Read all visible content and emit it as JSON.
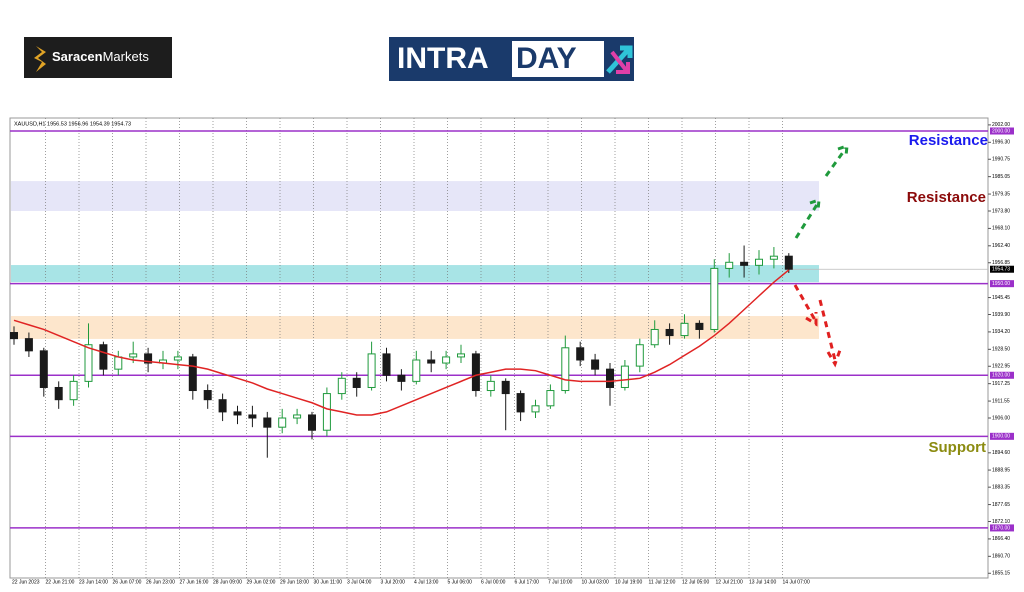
{
  "header": {
    "brand_bold": "Saracen",
    "brand_rest": "Markets",
    "logo_a": "INTRA",
    "logo_b": "DAY"
  },
  "chart_data": {
    "type": "candlestick",
    "symbol_info": "XAUUSD,H1  1956.53 1956.96 1954.39 1954.73",
    "up_color": "#1f9a3c",
    "down_color": "#1a1a1a",
    "ma_color": "#e02424",
    "level_color": "#9b30c9",
    "ylim": [
      1853.6,
      2004.26
    ],
    "yticks": [
      {
        "value": 2002,
        "label": "2002.00"
      },
      {
        "value": 1996.3,
        "label": "1996.30"
      },
      1990.75,
      1985.05,
      1979.35,
      {
        "value": 1973.8,
        "label": "1973.80"
      },
      {
        "value": 1968.1,
        "label": "1968.10"
      },
      {
        "value": 1962.4,
        "label": "1962.40"
      },
      1956.85,
      1945.45,
      {
        "value": 1939.9,
        "label": "1939.90"
      },
      {
        "value": 1934.2,
        "label": "1934.20"
      },
      {
        "value": 1928.5,
        "label": "1928.50"
      },
      1922.95,
      1917.25,
      1911.55,
      {
        "value": 1906,
        "label": "1906.00"
      },
      {
        "value": 1894.6,
        "label": "1894.60"
      },
      1888.95,
      1883.35,
      1877.65,
      {
        "value": 1872.1,
        "label": "1872.10"
      },
      {
        "value": 1866.4,
        "label": "1866.40"
      },
      {
        "value": 1860.7,
        "label": "1860.70"
      },
      1855.15
    ],
    "levels": [
      {
        "value": 2000,
        "label": "2000.00"
      },
      {
        "value": 1950,
        "label": "1950.00"
      },
      {
        "value": 1920,
        "label": "1920.00"
      },
      {
        "value": 1900,
        "label": "1900.00"
      },
      {
        "value": 1870,
        "label": "1870.00"
      }
    ],
    "zones": [
      {
        "from": 1983.6,
        "to": 1973.8,
        "color": "#e6e6f8"
      },
      {
        "from": 1956.1,
        "to": 1950.5,
        "color": "#a8e4e6"
      },
      {
        "from": 1939.4,
        "to": 1931.9,
        "color": "#fde6cc"
      }
    ],
    "last_price": 1954.73,
    "categories": [
      "22 Jun 2023",
      "22 Jun 21:00",
      "23 Jun 14:00",
      "26 Jun 07:00",
      "26 Jun 23:00",
      "27 Jun 16:00",
      "28 Jun 09:00",
      "29 Jun 02:00",
      "29 Jun 18:00",
      "30 Jun 11:00",
      "3 Jul 04:00",
      "3 Jul 20:00",
      "4 Jul 13:00",
      "5 Jul 06:00",
      "6 Jul 00:00",
      "6 Jul 17:00",
      "7 Jul 10:00",
      "10 Jul 03:00",
      "10 Jul 19:00",
      "11 Jul 12:00",
      "12 Jul 05:00",
      "12 Jul 21:00",
      "13 Jul 14:00",
      "14 Jul 07:00"
    ],
    "ohlc": [
      [
        1934,
        1936,
        1930,
        1932
      ],
      [
        1932,
        1934,
        1926,
        1928
      ],
      [
        1928,
        1929,
        1913,
        1916
      ],
      [
        1916,
        1918,
        1909,
        1912
      ],
      [
        1912,
        1920,
        1910,
        1918
      ],
      [
        1918,
        1937,
        1916,
        1930
      ],
      [
        1930,
        1931,
        1920,
        1922
      ],
      [
        1922,
        1928,
        1920,
        1926
      ],
      [
        1926,
        1931,
        1924,
        1927
      ],
      [
        1927,
        1929,
        1921,
        1924
      ],
      [
        1924,
        1928,
        1922,
        1925
      ],
      [
        1925,
        1928,
        1922,
        1926
      ],
      [
        1926,
        1927,
        1912,
        1915
      ],
      [
        1915,
        1917,
        1909,
        1912
      ],
      [
        1912,
        1914,
        1905,
        1908
      ],
      [
        1908,
        1910,
        1904,
        1907
      ],
      [
        1907,
        1910,
        1903,
        1906
      ],
      [
        1906,
        1908,
        1893,
        1903
      ],
      [
        1903,
        1909,
        1901,
        1906
      ],
      [
        1906,
        1909,
        1904,
        1907
      ],
      [
        1907,
        1908,
        1899,
        1902
      ],
      [
        1902,
        1916,
        1900,
        1914
      ],
      [
        1914,
        1921,
        1912,
        1919
      ],
      [
        1919,
        1921,
        1913,
        1916
      ],
      [
        1916,
        1931,
        1915,
        1927
      ],
      [
        1927,
        1929,
        1918,
        1920
      ],
      [
        1920,
        1922,
        1915,
        1918
      ],
      [
        1918,
        1928,
        1917,
        1925
      ],
      [
        1925,
        1928,
        1921,
        1924
      ],
      [
        1924,
        1928,
        1922,
        1926
      ],
      [
        1926,
        1930,
        1924,
        1927
      ],
      [
        1927,
        1928,
        1913,
        1915
      ],
      [
        1915,
        1920,
        1913,
        1918
      ],
      [
        1918,
        1919,
        1902,
        1914
      ],
      [
        1914,
        1915,
        1905,
        1908
      ],
      [
        1908,
        1912,
        1906,
        1910
      ],
      [
        1910,
        1917,
        1909,
        1915
      ],
      [
        1915,
        1933,
        1914,
        1929
      ],
      [
        1929,
        1931,
        1923,
        1925
      ],
      [
        1925,
        1927,
        1920,
        1922
      ],
      [
        1922,
        1924,
        1910,
        1916
      ],
      [
        1916,
        1925,
        1915,
        1923
      ],
      [
        1923,
        1932,
        1921,
        1930
      ],
      [
        1930,
        1938,
        1929,
        1935
      ],
      [
        1935,
        1937,
        1930,
        1933
      ],
      [
        1933,
        1940,
        1932,
        1937
      ],
      [
        1937,
        1938,
        1932,
        1935
      ],
      [
        1935,
        1958,
        1934,
        1955
      ],
      [
        1955,
        1960,
        1952,
        1957
      ],
      [
        1957,
        1962.5,
        1952,
        1956
      ],
      [
        1956,
        1961,
        1953,
        1958
      ],
      [
        1958,
        1962,
        1955,
        1959
      ],
      [
        1959,
        1960,
        1953.5,
        1954.73
      ]
    ],
    "ma": [
      1938,
      1936.5,
      1935,
      1933,
      1931,
      1929,
      1927.5,
      1926,
      1925,
      1924.5,
      1924,
      1923.5,
      1923,
      1922,
      1920.5,
      1919,
      1917.5,
      1915.5,
      1914,
      1912.5,
      1911,
      1909,
      1908,
      1907,
      1907,
      1908,
      1910,
      1912,
      1914,
      1916,
      1918,
      1920,
      1921,
      1922,
      1922,
      1921.5,
      1920,
      1918.5,
      1918,
      1918,
      1918,
      1918.5,
      1919,
      1921,
      1923.5,
      1926.5,
      1929.5,
      1933,
      1937,
      1941.5,
      1946,
      1950.5,
      1954.5
    ],
    "annotations": [
      "Resistance",
      "Resistance",
      "Support"
    ]
  }
}
